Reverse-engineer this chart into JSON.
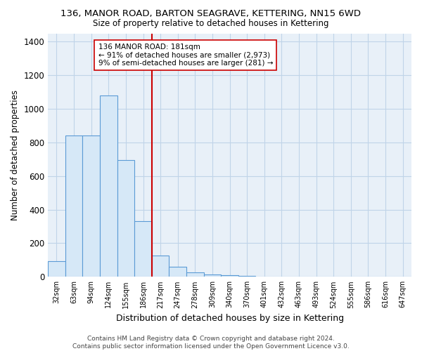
{
  "title1": "136, MANOR ROAD, BARTON SEAGRAVE, KETTERING, NN15 6WD",
  "title2": "Size of property relative to detached houses in Kettering",
  "xlabel": "Distribution of detached houses by size in Kettering",
  "ylabel": "Number of detached properties",
  "bar_labels": [
    "32sqm",
    "63sqm",
    "94sqm",
    "124sqm",
    "155sqm",
    "186sqm",
    "217sqm",
    "247sqm",
    "278sqm",
    "309sqm",
    "340sqm",
    "370sqm",
    "401sqm",
    "432sqm",
    "463sqm",
    "493sqm",
    "524sqm",
    "555sqm",
    "586sqm",
    "616sqm",
    "647sqm"
  ],
  "bar_values": [
    95,
    840,
    840,
    1080,
    695,
    330,
    125,
    60,
    27,
    15,
    8,
    5,
    3,
    0,
    0,
    0,
    0,
    0,
    0,
    0,
    0
  ],
  "bar_color": "#d6e8f7",
  "bar_edge_color": "#5b9bd5",
  "grid_color": "#c0d4e8",
  "bg_color": "#e8f0f8",
  "vline_x_index": 5,
  "vline_color": "#cc0000",
  "annotation_text": "136 MANOR ROAD: 181sqm\n← 91% of detached houses are smaller (2,973)\n9% of semi-detached houses are larger (281) →",
  "annotation_box_color": "#ffffff",
  "annotation_box_edge": "#cc0000",
  "ylim": [
    0,
    1450
  ],
  "yticks": [
    0,
    200,
    400,
    600,
    800,
    1000,
    1200,
    1400
  ],
  "footer_text": "Contains HM Land Registry data © Crown copyright and database right 2024.\nContains public sector information licensed under the Open Government Licence v3.0."
}
